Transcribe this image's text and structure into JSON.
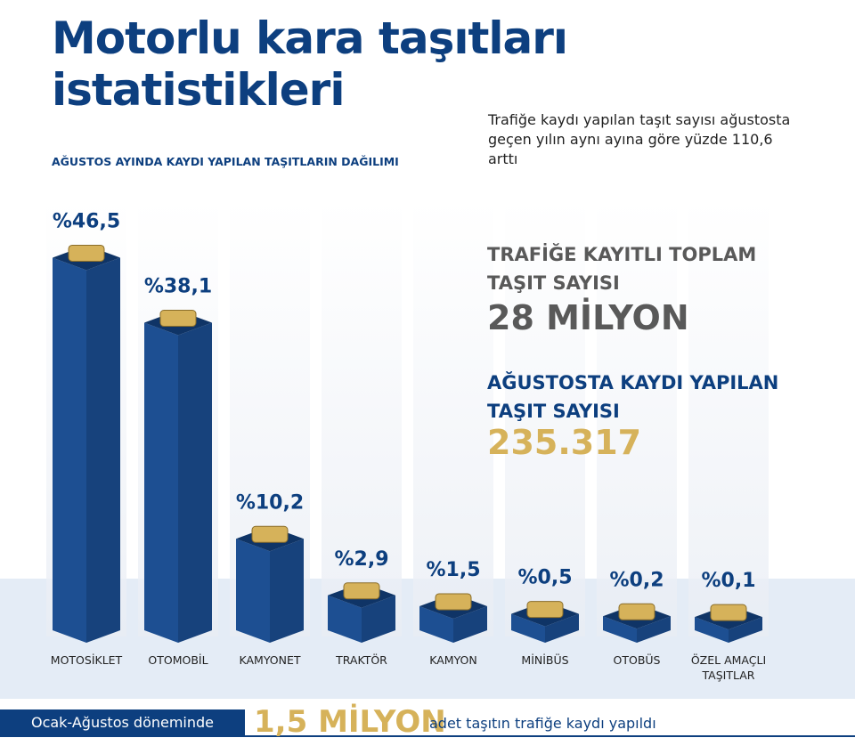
{
  "chart_data": {
    "type": "bar3d",
    "title": "Motorlu kara taşıtları istatistikleri",
    "subtitle": "AĞUSTOS AYINDA KAYDI YAPILAN TAŞITLARIN DAĞILIMI",
    "categories": [
      "MOTOSİKLET",
      "OTOMOBİL",
      "KAMYONET",
      "TRAKTÖR",
      "KAMYON",
      "MİNİBÜS",
      "OTOBÜS",
      "ÖZEL AMAÇLI TAŞITLAR"
    ],
    "values": [
      46.5,
      38.1,
      10.2,
      2.9,
      1.5,
      0.5,
      0.2,
      0.1
    ],
    "value_labels": [
      "%46,5",
      "%38,1",
      "%10,2",
      "%2,9",
      "%1,5",
      "%0,5",
      "%0,2",
      "%0,1"
    ],
    "color": "#1d4f92"
  },
  "note": "Trafiğe kaydı yapılan taşıt sayısı ağustosta geçen yılın aynı ayına göre yüzde 110,6 arttı",
  "highlights": [
    {
      "label": "TRAFİĞE KAYITLI TOPLAM TAŞIT SAYISI",
      "value": "28 MİLYON"
    },
    {
      "label": "AĞUSTOSTA KAYDI YAPILAN TAŞIT SAYISI",
      "value": "235.317"
    }
  ],
  "footer": {
    "period": "Ocak-Ağustos döneminde",
    "amount": "1,5 MİLYON",
    "text": "adet taşıtın trafiğe kaydı yapıldı"
  }
}
